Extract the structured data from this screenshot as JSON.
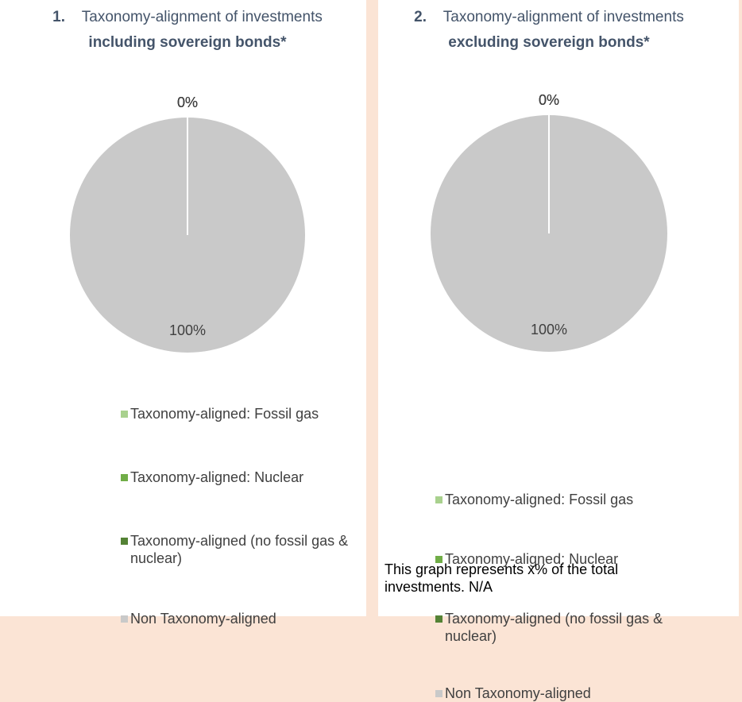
{
  "chart_data": [
    {
      "type": "pie",
      "number": "1.",
      "title": "Taxonomy-alignment of investments",
      "title_emphasis": "including sovereign bonds*",
      "categories": [
        "Taxonomy-aligned: Fossil gas",
        "Taxonomy-aligned: Nuclear",
        "Taxonomy-aligned (no fossil gas & nuclear)",
        "Non Taxonomy-aligned"
      ],
      "values": [
        0,
        0,
        0,
        100
      ],
      "value_labels": [
        "0%",
        "0%",
        "0%",
        "100%"
      ],
      "colors": [
        "#a9d18e",
        "#70ad47",
        "#548235",
        "#c9c9c9"
      ]
    },
    {
      "type": "pie",
      "number": "2.",
      "title": "Taxonomy-alignment of investments",
      "title_emphasis": "excluding sovereign bonds*",
      "categories": [
        "Taxonomy-aligned: Fossil gas",
        "Taxonomy-aligned: Nuclear",
        "Taxonomy-aligned (no fossil gas & nuclear)",
        "Non Taxonomy-aligned"
      ],
      "values": [
        0,
        0,
        0,
        100
      ],
      "value_labels": [
        "0%",
        "0%",
        "0%",
        "100%"
      ],
      "colors": [
        "#a9d18e",
        "#70ad47",
        "#548235",
        "#c9c9c9"
      ],
      "note": "This graph represents x% of the total investments.  N/A"
    }
  ]
}
